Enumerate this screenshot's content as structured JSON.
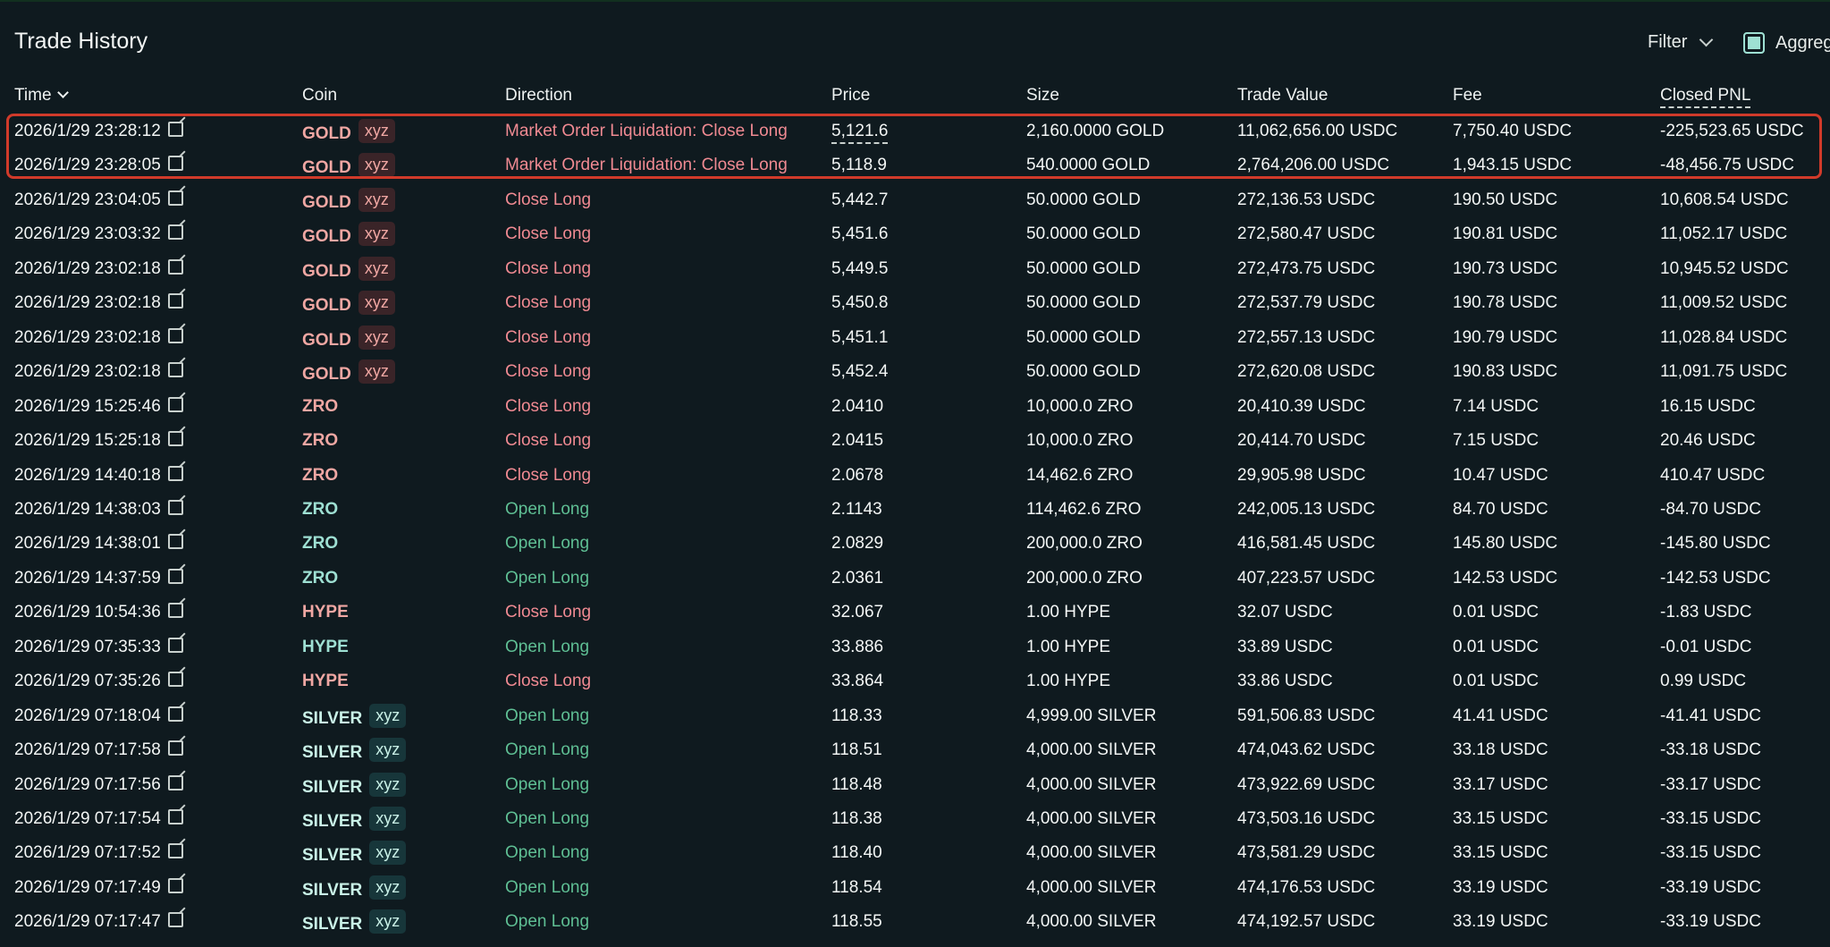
{
  "header": {
    "title": "Trade History",
    "filter_label": "Filter",
    "aggregate_label": "Aggreg"
  },
  "columns": [
    "Time",
    "Coin",
    "Direction",
    "Price",
    "Size",
    "Trade Value",
    "Fee",
    "Closed PNL"
  ],
  "colors": {
    "gold_coin": "#f0a7a3",
    "gold_tag_bg": "#3a2428",
    "gold_tag_text": "#f0a7a3",
    "zro_close": "#f0a7a3",
    "zro_open": "#9ee0d3",
    "silver_coin": "#c9f1e7",
    "silver_tag_bg": "#17363a",
    "silver_tag_text": "#c9f1e7",
    "direction_close": "#f08a92",
    "direction_open": "#5fbf94",
    "highlight": "#d03a2a"
  },
  "rows": [
    {
      "time": "2026/1/29 23:28:12",
      "coin": "GOLD",
      "tag": "xyz",
      "direction": "Market Order Liquidation: Close Long",
      "side": "close",
      "price": "5,121.6",
      "price_dashed": true,
      "size": "2,160.0000 GOLD",
      "value": "11,062,656.00 USDC",
      "fee": "7,750.40 USDC",
      "pnl": "-225,523.65 USDC",
      "coin_class": "gold"
    },
    {
      "time": "2026/1/29 23:28:05",
      "coin": "GOLD",
      "tag": "xyz",
      "direction": "Market Order Liquidation: Close Long",
      "side": "close",
      "price": "5,118.9",
      "price_dashed": true,
      "size": "540.0000 GOLD",
      "value": "2,764,206.00 USDC",
      "fee": "1,943.15 USDC",
      "pnl": "-48,456.75 USDC",
      "coin_class": "gold"
    },
    {
      "time": "2026/1/29 23:04:05",
      "coin": "GOLD",
      "tag": "xyz",
      "direction": "Close Long",
      "side": "close",
      "price": "5,442.7",
      "size": "50.0000 GOLD",
      "value": "272,136.53 USDC",
      "fee": "190.50 USDC",
      "pnl": "10,608.54 USDC",
      "coin_class": "gold"
    },
    {
      "time": "2026/1/29 23:03:32",
      "coin": "GOLD",
      "tag": "xyz",
      "direction": "Close Long",
      "side": "close",
      "price": "5,451.6",
      "size": "50.0000 GOLD",
      "value": "272,580.47 USDC",
      "fee": "190.81 USDC",
      "pnl": "11,052.17 USDC",
      "coin_class": "gold"
    },
    {
      "time": "2026/1/29 23:02:18",
      "coin": "GOLD",
      "tag": "xyz",
      "direction": "Close Long",
      "side": "close",
      "price": "5,449.5",
      "size": "50.0000 GOLD",
      "value": "272,473.75 USDC",
      "fee": "190.73 USDC",
      "pnl": "10,945.52 USDC",
      "coin_class": "gold"
    },
    {
      "time": "2026/1/29 23:02:18",
      "coin": "GOLD",
      "tag": "xyz",
      "direction": "Close Long",
      "side": "close",
      "price": "5,450.8",
      "size": "50.0000 GOLD",
      "value": "272,537.79 USDC",
      "fee": "190.78 USDC",
      "pnl": "11,009.52 USDC",
      "coin_class": "gold"
    },
    {
      "time": "2026/1/29 23:02:18",
      "coin": "GOLD",
      "tag": "xyz",
      "direction": "Close Long",
      "side": "close",
      "price": "5,451.1",
      "size": "50.0000 GOLD",
      "value": "272,557.13 USDC",
      "fee": "190.79 USDC",
      "pnl": "11,028.84 USDC",
      "coin_class": "gold"
    },
    {
      "time": "2026/1/29 23:02:18",
      "coin": "GOLD",
      "tag": "xyz",
      "direction": "Close Long",
      "side": "close",
      "price": "5,452.4",
      "size": "50.0000 GOLD",
      "value": "272,620.08 USDC",
      "fee": "190.83 USDC",
      "pnl": "11,091.75 USDC",
      "coin_class": "gold"
    },
    {
      "time": "2026/1/29 15:25:46",
      "coin": "ZRO",
      "tag": "",
      "direction": "Close Long",
      "side": "close",
      "price": "2.0410",
      "size": "10,000.0 ZRO",
      "value": "20,410.39 USDC",
      "fee": "7.14 USDC",
      "pnl": "16.15 USDC",
      "coin_class": "zro_close"
    },
    {
      "time": "2026/1/29 15:25:18",
      "coin": "ZRO",
      "tag": "",
      "direction": "Close Long",
      "side": "close",
      "price": "2.0415",
      "size": "10,000.0 ZRO",
      "value": "20,414.70 USDC",
      "fee": "7.15 USDC",
      "pnl": "20.46 USDC",
      "coin_class": "zro_close"
    },
    {
      "time": "2026/1/29 14:40:18",
      "coin": "ZRO",
      "tag": "",
      "direction": "Close Long",
      "side": "close",
      "price": "2.0678",
      "size": "14,462.6 ZRO",
      "value": "29,905.98 USDC",
      "fee": "10.47 USDC",
      "pnl": "410.47 USDC",
      "coin_class": "zro_close"
    },
    {
      "time": "2026/1/29 14:38:03",
      "coin": "ZRO",
      "tag": "",
      "direction": "Open Long",
      "side": "open",
      "price": "2.1143",
      "size": "114,462.6 ZRO",
      "value": "242,005.13 USDC",
      "fee": "84.70 USDC",
      "pnl": "-84.70 USDC",
      "coin_class": "zro_open"
    },
    {
      "time": "2026/1/29 14:38:01",
      "coin": "ZRO",
      "tag": "",
      "direction": "Open Long",
      "side": "open",
      "price": "2.0829",
      "size": "200,000.0 ZRO",
      "value": "416,581.45 USDC",
      "fee": "145.80 USDC",
      "pnl": "-145.80 USDC",
      "coin_class": "zro_open"
    },
    {
      "time": "2026/1/29 14:37:59",
      "coin": "ZRO",
      "tag": "",
      "direction": "Open Long",
      "side": "open",
      "price": "2.0361",
      "size": "200,000.0 ZRO",
      "value": "407,223.57 USDC",
      "fee": "142.53 USDC",
      "pnl": "-142.53 USDC",
      "coin_class": "zro_open"
    },
    {
      "time": "2026/1/29 10:54:36",
      "coin": "HYPE",
      "tag": "",
      "direction": "Close Long",
      "side": "close",
      "price": "32.067",
      "size": "1.00 HYPE",
      "value": "32.07 USDC",
      "fee": "0.01 USDC",
      "pnl": "-1.83 USDC",
      "coin_class": "zro_close"
    },
    {
      "time": "2026/1/29 07:35:33",
      "coin": "HYPE",
      "tag": "",
      "direction": "Open Long",
      "side": "open",
      "price": "33.886",
      "size": "1.00 HYPE",
      "value": "33.89 USDC",
      "fee": "0.01 USDC",
      "pnl": "-0.01 USDC",
      "coin_class": "zro_open"
    },
    {
      "time": "2026/1/29 07:35:26",
      "coin": "HYPE",
      "tag": "",
      "direction": "Close Long",
      "side": "close",
      "price": "33.864",
      "size": "1.00 HYPE",
      "value": "33.86 USDC",
      "fee": "0.01 USDC",
      "pnl": "0.99 USDC",
      "coin_class": "zro_close"
    },
    {
      "time": "2026/1/29 07:18:04",
      "coin": "SILVER",
      "tag": "xyz",
      "direction": "Open Long",
      "side": "open",
      "price": "118.33",
      "size": "4,999.00 SILVER",
      "value": "591,506.83 USDC",
      "fee": "41.41 USDC",
      "pnl": "-41.41 USDC",
      "coin_class": "silver"
    },
    {
      "time": "2026/1/29 07:17:58",
      "coin": "SILVER",
      "tag": "xyz",
      "direction": "Open Long",
      "side": "open",
      "price": "118.51",
      "size": "4,000.00 SILVER",
      "value": "474,043.62 USDC",
      "fee": "33.18 USDC",
      "pnl": "-33.18 USDC",
      "coin_class": "silver"
    },
    {
      "time": "2026/1/29 07:17:56",
      "coin": "SILVER",
      "tag": "xyz",
      "direction": "Open Long",
      "side": "open",
      "price": "118.48",
      "size": "4,000.00 SILVER",
      "value": "473,922.69 USDC",
      "fee": "33.17 USDC",
      "pnl": "-33.17 USDC",
      "coin_class": "silver"
    },
    {
      "time": "2026/1/29 07:17:54",
      "coin": "SILVER",
      "tag": "xyz",
      "direction": "Open Long",
      "side": "open",
      "price": "118.38",
      "size": "4,000.00 SILVER",
      "value": "473,503.16 USDC",
      "fee": "33.15 USDC",
      "pnl": "-33.15 USDC",
      "coin_class": "silver"
    },
    {
      "time": "2026/1/29 07:17:52",
      "coin": "SILVER",
      "tag": "xyz",
      "direction": "Open Long",
      "side": "open",
      "price": "118.40",
      "size": "4,000.00 SILVER",
      "value": "473,581.29 USDC",
      "fee": "33.15 USDC",
      "pnl": "-33.15 USDC",
      "coin_class": "silver"
    },
    {
      "time": "2026/1/29 07:17:49",
      "coin": "SILVER",
      "tag": "xyz",
      "direction": "Open Long",
      "side": "open",
      "price": "118.54",
      "size": "4,000.00 SILVER",
      "value": "474,176.53 USDC",
      "fee": "33.19 USDC",
      "pnl": "-33.19 USDC",
      "coin_class": "silver"
    },
    {
      "time": "2026/1/29 07:17:47",
      "coin": "SILVER",
      "tag": "xyz",
      "direction": "Open Long",
      "side": "open",
      "price": "118.55",
      "size": "4,000.00 SILVER",
      "value": "474,192.57 USDC",
      "fee": "33.19 USDC",
      "pnl": "-33.19 USDC",
      "coin_class": "silver"
    }
  ]
}
